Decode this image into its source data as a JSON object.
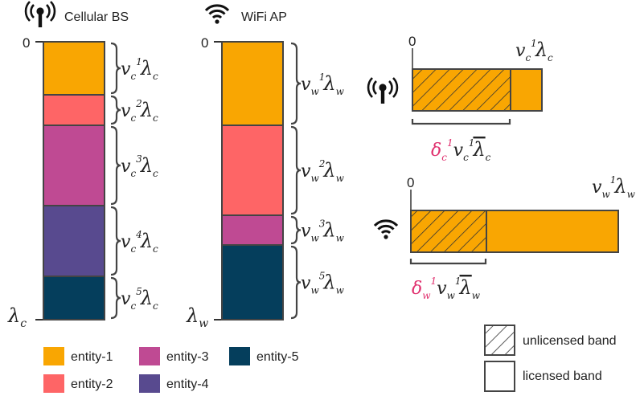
{
  "header": {
    "cellular_label": "Cellular BS",
    "wifi_label": "WiFi AP"
  },
  "axis": {
    "zero_cellular": "0",
    "zero_wifi": "0",
    "zero_cell_band": "0",
    "zero_wifi_band": "0"
  },
  "cellular_stack": [
    {
      "entity": "entity-1",
      "label_base": "v",
      "label_sub": "c",
      "label_sup": "1",
      "label_lambda": "λ",
      "label_lsub": "c"
    },
    {
      "entity": "entity-2",
      "label_base": "v",
      "label_sub": "c",
      "label_sup": "2",
      "label_lambda": "λ",
      "label_lsub": "c"
    },
    {
      "entity": "entity-3",
      "label_base": "v",
      "label_sub": "c",
      "label_sup": "3",
      "label_lambda": "λ",
      "label_lsub": "c"
    },
    {
      "entity": "entity-4",
      "label_base": "v",
      "label_sub": "c",
      "label_sup": "4",
      "label_lambda": "λ",
      "label_lsub": "c"
    },
    {
      "entity": "entity-5",
      "label_base": "v",
      "label_sub": "c",
      "label_sup": "5",
      "label_lambda": "λ",
      "label_lsub": "c"
    }
  ],
  "wifi_stack": [
    {
      "entity": "entity-1",
      "label_base": "v",
      "label_sub": "w",
      "label_sup": "1",
      "label_lambda": "λ",
      "label_lsub": "w"
    },
    {
      "entity": "entity-2",
      "label_base": "v",
      "label_sub": "w",
      "label_sup": "2",
      "label_lambda": "λ",
      "label_lsub": "w"
    },
    {
      "entity": "entity-3",
      "label_base": "v",
      "label_sub": "w",
      "label_sup": "3",
      "label_lambda": "λ",
      "label_lsub": "w"
    },
    {
      "entity": "entity-5",
      "label_base": "v",
      "label_sub": "w",
      "label_sup": "5",
      "label_lambda": "λ",
      "label_lsub": "w"
    }
  ],
  "bottom_labels": {
    "cellular_lambda": "λ",
    "cellular_lambda_sub": "c",
    "wifi_lambda": "λ",
    "wifi_lambda_sub": "w"
  },
  "cell_band": {
    "top_label": {
      "base": "v",
      "sub": "c",
      "sup": "1",
      "lambda": "λ",
      "lsub": "c"
    },
    "bottom_label": {
      "delta": "δ",
      "dsub": "c",
      "dsup": "1",
      "base": "v",
      "sub": "c",
      "sup": "1",
      "lambda": "λ",
      "lsub": "c"
    }
  },
  "wifi_band": {
    "top_label": {
      "base": "v",
      "sub": "w",
      "sup": "1",
      "lambda": "λ",
      "lsub": "w"
    },
    "bottom_label": {
      "delta": "δ",
      "dsub": "w",
      "dsup": "1",
      "base": "v",
      "sub": "w",
      "sup": "1",
      "lambda": "λ",
      "lsub": "w"
    }
  },
  "legend": {
    "entities": [
      {
        "name": "entity-1",
        "color": "#f9a602"
      },
      {
        "name": "entity-2",
        "color": "#fe6566"
      },
      {
        "name": "entity-3",
        "color": "#bf4a93"
      },
      {
        "name": "entity-4",
        "color": "#584a8f"
      },
      {
        "name": "entity-5",
        "color": "#053e5c"
      }
    ],
    "unlicensed": "unlicensed band",
    "licensed": "licensed band"
  },
  "icons": {
    "cellular": "cell-tower-icon",
    "wifi": "wifi-icon"
  }
}
